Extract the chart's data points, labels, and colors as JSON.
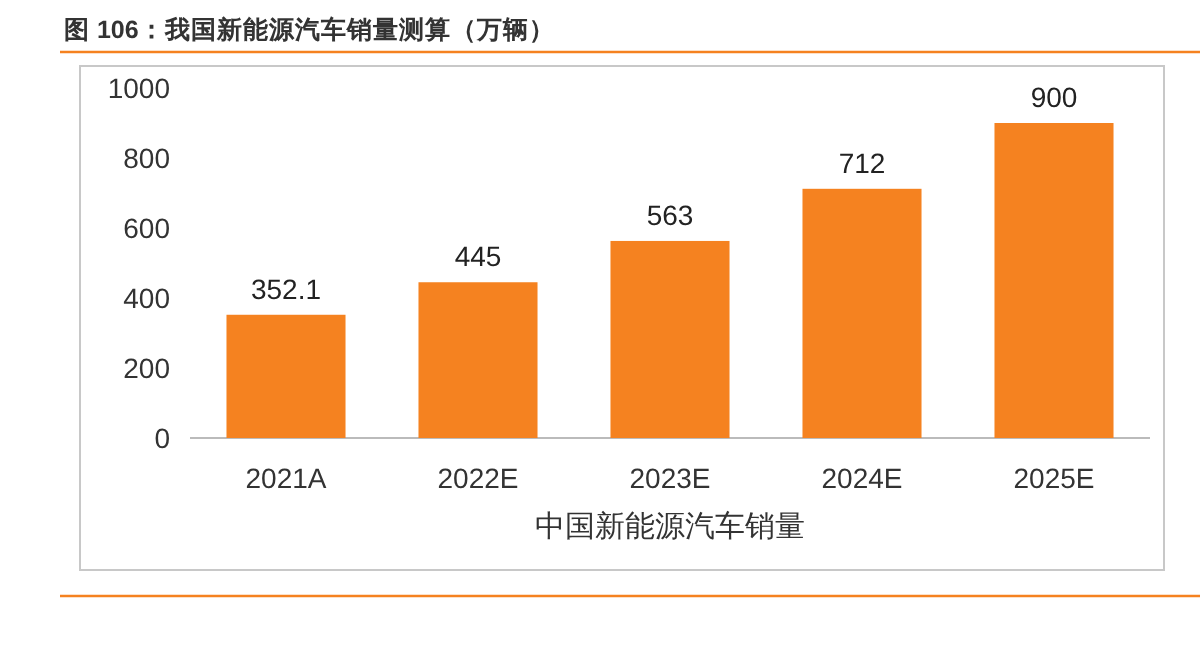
{
  "chart_data": {
    "type": "bar",
    "title": "图 106：我国新能源汽车销量测算（万辆）",
    "xlabel": "中国新能源汽车销量",
    "categories": [
      "2021A",
      "2022E",
      "2023E",
      "2024E",
      "2025E"
    ],
    "values": [
      352.1,
      445,
      563,
      712,
      900
    ],
    "color": "#f58220",
    "ylim": [
      0,
      1000
    ],
    "yticks": [
      0,
      200,
      400,
      600,
      800,
      1000
    ],
    "data_labels": true
  }
}
